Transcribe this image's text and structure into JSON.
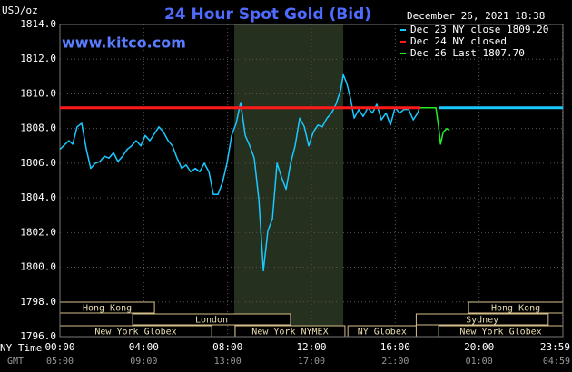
{
  "chart_data": {
    "type": "line",
    "title": "24 Hour Spot Gold (Bid)",
    "unit_label": "USD/oz",
    "watermark": "www.kitco.com",
    "timestamp": "December 26, 2021 18:38",
    "x_label": "NY Time",
    "x2_label": "GMT",
    "xlim": [
      0,
      24
    ],
    "xticks": [
      {
        "value": 0,
        "label": "00:00"
      },
      {
        "value": 4,
        "label": "04:00"
      },
      {
        "value": 8,
        "label": "08:00"
      },
      {
        "value": 12,
        "label": "12:00"
      },
      {
        "value": 16,
        "label": "16:00"
      },
      {
        "value": 20,
        "label": "20:00"
      },
      {
        "value": 23.98,
        "label": "23:59"
      }
    ],
    "x2ticks": [
      {
        "value": 0,
        "label": "05:00"
      },
      {
        "value": 4,
        "label": "09:00"
      },
      {
        "value": 8,
        "label": "13:00"
      },
      {
        "value": 12,
        "label": "17:00"
      },
      {
        "value": 16,
        "label": "21:00"
      },
      {
        "value": 20,
        "label": "01:00"
      },
      {
        "value": 23.98,
        "label": "04:59"
      }
    ],
    "ylim": [
      1796,
      1814
    ],
    "yticks": [
      {
        "value": 1796,
        "label": "1796.0"
      },
      {
        "value": 1798,
        "label": "1798.0"
      },
      {
        "value": 1800,
        "label": "1800.0"
      },
      {
        "value": 1802,
        "label": "1802.0"
      },
      {
        "value": 1804,
        "label": "1804.0"
      },
      {
        "value": 1806,
        "label": "1806.0"
      },
      {
        "value": 1808,
        "label": "1808.0"
      },
      {
        "value": 1810,
        "label": "1810.0"
      },
      {
        "value": 1812,
        "label": "1812.0"
      },
      {
        "value": 1814,
        "label": "1814.0"
      }
    ],
    "grid": true,
    "legend": "top-right",
    "shaded": [
      8.32,
      13.52
    ],
    "series": [
      {
        "name": "Dec 23 NY close 1809.20",
        "color": "#19c8ff",
        "x": [
          0,
          0.17,
          0.43,
          0.61,
          0.82,
          1.04,
          1.26,
          1.47,
          1.69,
          1.91,
          2.12,
          2.34,
          2.56,
          2.77,
          2.99,
          3.21,
          3.42,
          3.64,
          3.86,
          4.07,
          4.29,
          4.51,
          4.72,
          4.94,
          5.16,
          5.37,
          5.59,
          5.81,
          6.02,
          6.24,
          6.46,
          6.67,
          6.89,
          7.11,
          7.32,
          7.54,
          7.76,
          7.97,
          8.19,
          8.41,
          8.62,
          8.84,
          9.06,
          9.27,
          9.49,
          9.71,
          9.92,
          10.14,
          10.36,
          10.57,
          10.79,
          11.01,
          11.22,
          11.44,
          11.66,
          11.87,
          12.09,
          12.31,
          12.52,
          12.74,
          12.96,
          13.17,
          13.39,
          13.52,
          13.69,
          13.87,
          14.04,
          14.26,
          14.47,
          14.69,
          14.91,
          15.12,
          15.34,
          15.56,
          15.77,
          15.99,
          16.21,
          16.42,
          16.64,
          16.86,
          17.07,
          17.16
        ],
        "values": [
          1806.8,
          1807.0,
          1807.3,
          1807.1,
          1808.1,
          1808.3,
          1806.8,
          1805.7,
          1806.0,
          1806.1,
          1806.4,
          1806.3,
          1806.6,
          1806.1,
          1806.4,
          1806.8,
          1807.0,
          1807.3,
          1807.0,
          1807.6,
          1807.3,
          1807.7,
          1808.1,
          1807.8,
          1807.3,
          1807.0,
          1806.3,
          1805.7,
          1805.9,
          1805.5,
          1805.7,
          1805.5,
          1806.0,
          1805.5,
          1804.2,
          1804.2,
          1804.9,
          1806.0,
          1807.6,
          1808.3,
          1809.5,
          1807.6,
          1807.0,
          1806.3,
          1803.9,
          1799.8,
          1802.1,
          1802.8,
          1806.0,
          1805.2,
          1804.5,
          1806.0,
          1807.0,
          1808.6,
          1808.1,
          1807.0,
          1807.8,
          1808.2,
          1808.1,
          1808.6,
          1808.9,
          1809.4,
          1810.2,
          1811.1,
          1810.6,
          1809.7,
          1808.6,
          1809.1,
          1808.7,
          1809.2,
          1808.9,
          1809.4,
          1808.5,
          1808.9,
          1808.2,
          1809.2,
          1808.9,
          1809.1,
          1809.1,
          1808.5,
          1808.9,
          1809.2
        ]
      },
      {
        "name": "Dec 24 NY closed",
        "color": "#ff1a1a",
        "x": [
          0,
          17.2
        ],
        "values": [
          1809.2,
          1809.2
        ]
      },
      {
        "name": "Dec 26 Last 1807.70",
        "color": "#22ee22",
        "x": [
          17.2,
          17.94,
          18.07,
          18.16,
          18.29,
          18.46,
          18.59
        ],
        "values": [
          1809.2,
          1809.2,
          1808.1,
          1807.1,
          1807.8,
          1808.0,
          1807.9
        ]
      }
    ],
    "close_line": {
      "from": 18.07,
      "to": 24,
      "value": 1809.2
    },
    "session_rows": [
      [
        {
          "name": "Hong Kong",
          "start": 0,
          "end": 4.51
        },
        {
          "name": "Hong Kong",
          "start": 19.5,
          "end": 24
        }
      ],
      [
        {
          "name": "London",
          "start": 3.47,
          "end": 11.0
        },
        {
          "name": "Sydney",
          "start": 17.0,
          "end": 23.3
        }
      ],
      [
        {
          "name": "New York Globex",
          "start": 0,
          "end": 7.24
        },
        {
          "name": "New York NYMEX",
          "start": 8.36,
          "end": 13.6
        },
        {
          "name": "NY Globex",
          "start": 13.74,
          "end": 17.0
        },
        {
          "name": "New York Globex",
          "start": 18.07,
          "end": 24
        }
      ]
    ]
  }
}
